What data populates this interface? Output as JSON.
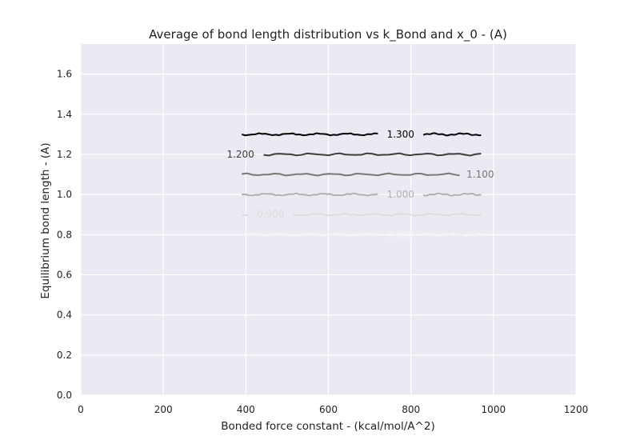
{
  "chart_data": {
    "type": "line",
    "title": "Average of bond length distribution vs k_Bond and x_0 - (A)",
    "xlabel": "Bonded force constant - (kcal/mol/A^2)",
    "ylabel": "Equilibrium bond length - (A)",
    "xlim": [
      0,
      1200
    ],
    "ylim": [
      0,
      1.75
    ],
    "xticks": [
      "0",
      "200",
      "400",
      "600",
      "800",
      "1000",
      "1200"
    ],
    "yticks": [
      "0.0",
      "0.2",
      "0.4",
      "0.6",
      "0.8",
      "1.0",
      "1.2",
      "1.4",
      "1.6"
    ],
    "xtick_values": [
      0,
      200,
      400,
      600,
      800,
      1000,
      1200
    ],
    "ytick_values": [
      0,
      0.2,
      0.4,
      0.6,
      0.8,
      1.0,
      1.2,
      1.4,
      1.6
    ],
    "grid": true,
    "background": "#eaeaf2",
    "series": [
      {
        "name": "1.300",
        "color": "#000000",
        "x": [
          390,
          970
        ],
        "y": [
          1.3,
          1.3
        ],
        "label_x": 775,
        "gap": [
          720,
          830
        ]
      },
      {
        "name": "1.200",
        "color": "#3c3c3c",
        "x": [
          443,
          970
        ],
        "y": [
          1.2,
          1.2
        ],
        "label_x": 387,
        "gap": null
      },
      {
        "name": "1.100",
        "color": "#777777",
        "x": [
          390,
          918
        ],
        "y": [
          1.1,
          1.1
        ],
        "label_x": 968,
        "gap": null
      },
      {
        "name": "1.000",
        "color": "#b0b0b0",
        "x": [
          390,
          970
        ],
        "y": [
          1.0,
          1.0
        ],
        "label_x": 775,
        "gap": [
          720,
          830
        ]
      },
      {
        "name": "0.900",
        "color": "#dcdcdc",
        "x": [
          390,
          970
        ],
        "y": [
          0.9,
          0.9
        ],
        "label_x": 460,
        "gap": [
          405,
          515
        ]
      },
      {
        "name": "0.800",
        "color": "#f4f4f4",
        "x": [
          390,
          970
        ],
        "y": [
          0.8,
          0.8
        ],
        "label_x": 775,
        "gap": [
          720,
          830
        ]
      }
    ]
  }
}
